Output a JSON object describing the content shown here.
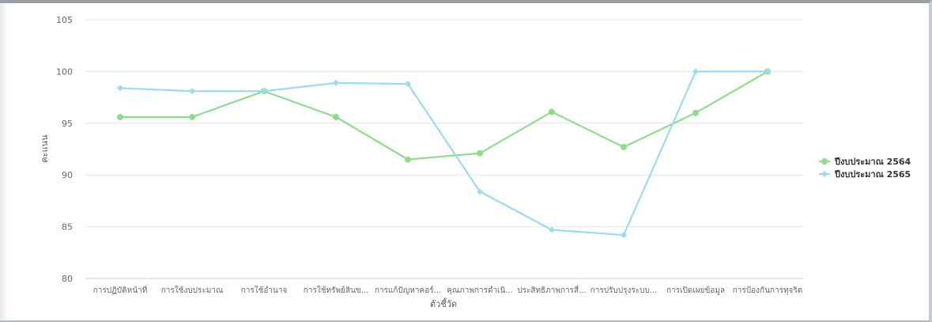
{
  "chart_data": {
    "type": "line",
    "xlabel": "ตัวชี้วัด",
    "ylabel": "คะแนน",
    "ylim": [
      80,
      105
    ],
    "yticks": [
      80,
      85,
      90,
      95,
      100,
      105
    ],
    "grid": true,
    "legend_position": "right",
    "categories": [
      "การปฏิบัติหน้าที่",
      "การใช้งบประมาณ",
      "การใช้อำนาจ",
      "การใช้ทรัพย์สินข...",
      "การแก้ปัญหาคอร์...",
      "คุณภาพการดำเนิ...",
      "ประสิทธิภาพการสื่...",
      "การปรับปรุงระบบ...",
      "การเปิดเผยข้อมูล",
      "การป้องกันการทุจริต"
    ],
    "series": [
      {
        "name": "ปีงบประมาณ 2564",
        "color": "#8fdc8f",
        "marker": "circle",
        "values": [
          95.6,
          95.6,
          98.1,
          95.6,
          91.5,
          92.1,
          96.1,
          92.7,
          96.0,
          100.0
        ]
      },
      {
        "name": "ปีงบประมาณ 2565",
        "color": "#9fd9ef",
        "marker": "diamond",
        "values": [
          98.4,
          98.1,
          98.1,
          98.9,
          98.8,
          88.4,
          84.7,
          84.2,
          100.0,
          100.0
        ]
      }
    ]
  }
}
